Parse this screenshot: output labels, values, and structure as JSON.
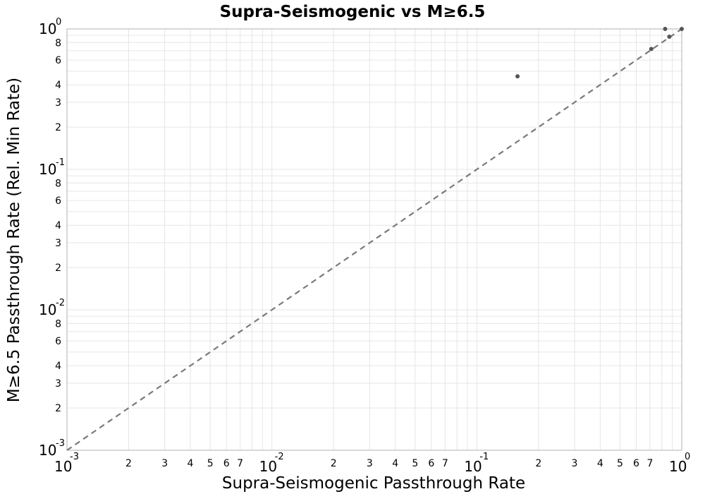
{
  "chart_data": {
    "type": "scatter",
    "title": "Supra-Seismogenic vs M≥6.5",
    "xlabel": "Supra-Seismogenic Passthrough Rate",
    "ylabel": "M≥6.5 Passthrough Rate (Rel. Min Rate)",
    "x_scale": "log",
    "y_scale": "log",
    "xlim": [
      0.001,
      1
    ],
    "ylim": [
      0.001,
      1
    ],
    "grid": true,
    "major_ticks": [
      {
        "base": "10",
        "exp": "-3",
        "value": 0.001
      },
      {
        "base": "10",
        "exp": "-2",
        "value": 0.01
      },
      {
        "base": "10",
        "exp": "-1",
        "value": 0.1
      },
      {
        "base": "10",
        "exp": "0",
        "value": 1
      }
    ],
    "minor_tick_labels": [
      "2",
      "3",
      "4",
      "5",
      "6",
      "7"
    ],
    "y_minor_tick_labels": [
      "2",
      "3",
      "4",
      "6",
      "8"
    ],
    "reference_line": {
      "style": "dashed",
      "color": "#7a7a7a",
      "x": [
        0.001,
        1
      ],
      "y": [
        0.001,
        1
      ]
    },
    "points": [
      {
        "x": 0.158,
        "y": 0.46
      },
      {
        "x": 0.71,
        "y": 0.72
      },
      {
        "x": 0.87,
        "y": 0.88
      },
      {
        "x": 0.83,
        "y": 1.0
      },
      {
        "x": 1.0,
        "y": 1.0
      }
    ],
    "colors": {
      "points": "#555555",
      "grid": "#e6e6e6",
      "frame": "#b0b0b0"
    }
  }
}
